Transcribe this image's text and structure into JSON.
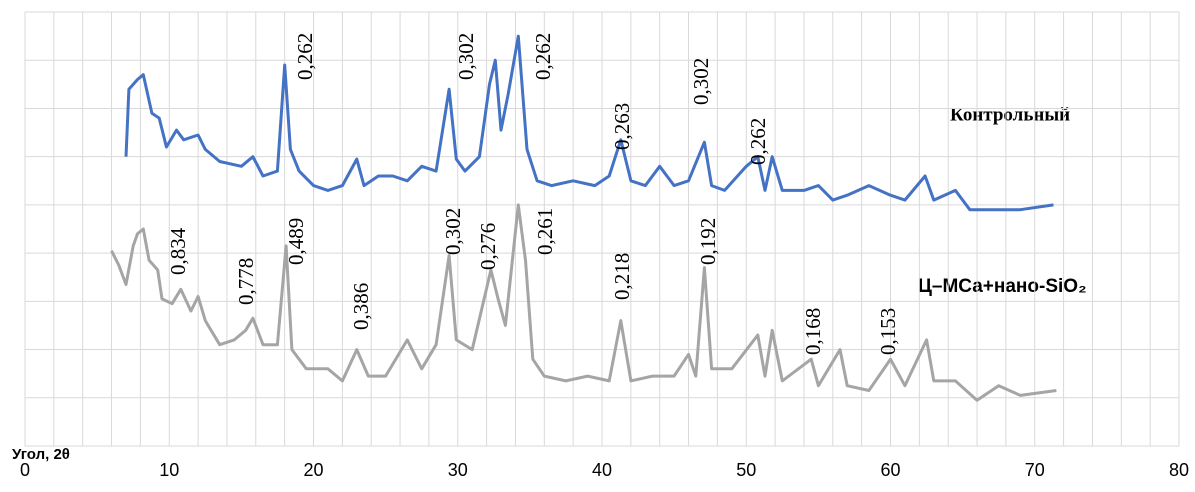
{
  "chart_data": {
    "type": "line",
    "x_label": "Угол, 2θ",
    "xlim": [
      0,
      80
    ],
    "xticks": [
      0,
      10,
      20,
      30,
      40,
      50,
      60,
      70,
      80
    ],
    "xgrid": [
      0,
      2,
      4,
      6,
      8,
      10,
      12,
      14,
      16,
      18,
      20,
      22,
      24,
      26,
      28,
      30,
      32,
      34,
      36,
      38,
      40,
      42,
      44,
      46,
      48,
      50,
      52,
      54,
      56,
      58,
      60,
      62,
      64,
      66,
      68,
      70,
      72,
      74,
      76,
      78,
      80
    ],
    "ylim": [
      0,
      9
    ],
    "yticks": [
      0,
      1,
      2,
      3,
      4,
      5,
      6,
      7,
      8,
      9
    ],
    "grid": true,
    "series": [
      {
        "name": "Контрольный",
        "color": "#4472c4",
        "x": [
          7,
          7.2,
          7.8,
          8.2,
          8.8,
          9.3,
          9.8,
          10.5,
          11,
          12,
          12.5,
          13.5,
          15,
          15.8,
          16.5,
          17.5,
          18,
          18.4,
          19,
          20,
          21,
          22,
          23,
          23.5,
          24.5,
          25.5,
          26.5,
          27.5,
          28.5,
          29.4,
          29.9,
          30.5,
          31.5,
          32.2,
          32.6,
          33,
          33.5,
          34.2,
          34.8,
          35.5,
          36.5,
          38,
          39.5,
          40.5,
          41.3,
          42,
          43,
          44,
          45,
          46,
          47.1,
          47.6,
          48.5,
          50,
          50.8,
          51.3,
          51.8,
          52.5,
          54,
          55,
          56,
          57,
          58.5,
          60,
          61,
          62.4,
          63,
          64.5,
          65.5,
          67,
          69,
          71.3
        ],
        "values": [
          6.0,
          7.4,
          7.6,
          7.7,
          6.9,
          6.8,
          6.2,
          6.55,
          6.35,
          6.45,
          6.15,
          5.9,
          5.8,
          6.0,
          5.6,
          5.7,
          7.9,
          6.15,
          5.7,
          5.4,
          5.3,
          5.4,
          5.95,
          5.4,
          5.6,
          5.6,
          5.5,
          5.8,
          5.7,
          7.4,
          5.95,
          5.7,
          6.0,
          7.5,
          8.0,
          6.55,
          7.3,
          8.5,
          6.15,
          5.5,
          5.4,
          5.5,
          5.4,
          5.6,
          6.35,
          5.5,
          5.4,
          5.8,
          5.4,
          5.5,
          6.3,
          5.4,
          5.3,
          5.8,
          6.0,
          5.3,
          6.0,
          5.3,
          5.3,
          5.4,
          5.1,
          5.2,
          5.4,
          5.2,
          5.1,
          5.6,
          5.1,
          5.3,
          4.9,
          4.9,
          4.9,
          5.0
        ]
      },
      {
        "name": "Ц–МСа+нано-SiO₂",
        "color": "#a5a5a5",
        "x": [
          6,
          6.5,
          7,
          7.5,
          7.8,
          8.2,
          8.6,
          9.2,
          9.5,
          10.2,
          10.8,
          11.5,
          12,
          12.5,
          13.5,
          14.5,
          15.3,
          15.8,
          16.5,
          17.5,
          18.1,
          18.5,
          19.5,
          21,
          22,
          23,
          23.8,
          25,
          26.5,
          27.5,
          28.5,
          29.4,
          29.9,
          31,
          32.3,
          32.8,
          33.3,
          34.2,
          34.7,
          35.2,
          36,
          37.5,
          39,
          40.5,
          41.3,
          42,
          43.5,
          45,
          46,
          46.5,
          47.1,
          47.6,
          49,
          50.8,
          51.3,
          51.8,
          52.5,
          54.5,
          55,
          56.5,
          57,
          58.5,
          60,
          61,
          62.5,
          63,
          64.5,
          66,
          67.5,
          69,
          71.5
        ],
        "values": [
          4.05,
          3.75,
          3.35,
          4.15,
          4.4,
          4.5,
          3.85,
          3.65,
          3.05,
          2.95,
          3.25,
          2.8,
          3.1,
          2.6,
          2.1,
          2.2,
          2.4,
          2.65,
          2.1,
          2.1,
          4.15,
          2.0,
          1.6,
          1.6,
          1.35,
          2.0,
          1.45,
          1.45,
          2.2,
          1.6,
          2.1,
          3.95,
          2.2,
          2.0,
          3.65,
          3.05,
          2.5,
          5.0,
          3.85,
          1.8,
          1.45,
          1.35,
          1.45,
          1.35,
          2.6,
          1.35,
          1.45,
          1.45,
          1.9,
          1.45,
          3.7,
          1.6,
          1.6,
          2.3,
          1.45,
          2.4,
          1.35,
          1.8,
          1.25,
          2.0,
          1.25,
          1.15,
          1.8,
          1.25,
          2.2,
          1.35,
          1.35,
          0.95,
          1.25,
          1.05,
          1.15
        ]
      }
    ],
    "annotations": [
      "0,262",
      "0,302",
      "0,262",
      "0,263",
      "0,302",
      "0,262",
      "0,834",
      "0,778",
      "0,489",
      "0,386",
      "0,302",
      "0,276",
      "0,261",
      "0,218",
      "0,192",
      "0,168",
      "0,153"
    ]
  }
}
